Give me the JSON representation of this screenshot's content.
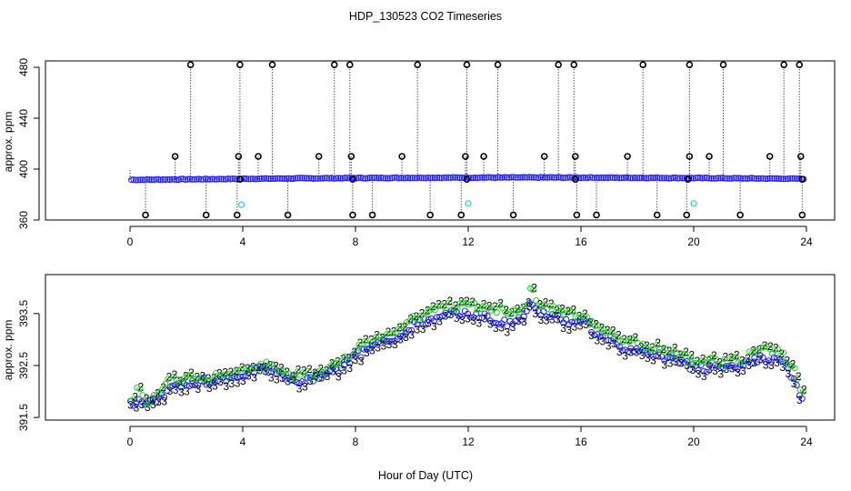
{
  "title": "HDP_130523  CO2 Timeseries",
  "xlabel": "Hour of Day (UTC)",
  "colors": {
    "axis": "#000000",
    "raw_points": "#000000",
    "raw_line": "#000000",
    "smoothed": "#1a1aff",
    "cal_points": "#33cccc",
    "series_2": "#22cc22",
    "series_3": "#1a1aff"
  },
  "chart_data": [
    {
      "type": "scatter",
      "name": "top-panel",
      "ylabel": "approx. ppm",
      "xlim": [
        -3,
        25
      ],
      "ylim": [
        360,
        485
      ],
      "xticks": [
        "0",
        "4",
        "8",
        "12",
        "16",
        "20",
        "24"
      ],
      "yticks": [
        "360",
        "400",
        "440",
        "480"
      ],
      "x_start": 0.05,
      "x_end": 23.9,
      "baseline": 392,
      "hi_spikes": [
        2.15,
        3.9,
        5.05,
        7.25,
        7.8,
        10.2,
        11.95,
        13.05,
        15.2,
        15.75,
        18.2,
        19.85,
        21.05,
        23.2,
        23.75
      ],
      "mid_spikes": [
        1.6,
        3.85,
        4.55,
        6.7,
        7.85,
        9.65,
        11.9,
        12.55,
        14.7,
        15.8,
        17.65,
        19.85,
        20.55,
        22.7,
        23.8
      ],
      "lo_spikes": [
        0.55,
        2.7,
        3.8,
        5.6,
        7.9,
        8.6,
        10.65,
        11.75,
        13.6,
        15.85,
        16.55,
        18.7,
        19.75,
        21.65,
        23.85
      ],
      "cal_points": [
        [
          3.95,
          372
        ],
        [
          12.0,
          373
        ],
        [
          20.0,
          373
        ]
      ],
      "hi_value": 482,
      "mid_value": 410,
      "lo_value": 364
    },
    {
      "type": "scatter",
      "name": "bottom-panel",
      "ylabel": "approx. ppm",
      "xlim": [
        -3,
        25
      ],
      "ylim": [
        391.45,
        394.25
      ],
      "xticks": [
        "0",
        "4",
        "8",
        "12",
        "16",
        "20",
        "24"
      ],
      "yticks": [
        "391.5",
        "392.5",
        "393.5"
      ],
      "series": [
        {
          "name": "2",
          "label": "2",
          "x": [
            0,
            0.3,
            0.6,
            0.9,
            1.2,
            1.5,
            2,
            2.5,
            3,
            3.5,
            4,
            4.5,
            5,
            5.5,
            6,
            6.5,
            7,
            7.5,
            8,
            8.5,
            9,
            9.5,
            10,
            10.5,
            11,
            11.5,
            12,
            12.5,
            13,
            13.5,
            14,
            14.2,
            14.5,
            15,
            15.5,
            16,
            16.5,
            17,
            17.5,
            18,
            18.5,
            19,
            19.5,
            20,
            20.5,
            21,
            21.5,
            22,
            22.5,
            23,
            23.3,
            23.6,
            23.85
          ],
          "values": [
            391.85,
            392.05,
            391.75,
            392.0,
            392.15,
            392.2,
            392.3,
            392.25,
            392.3,
            392.35,
            392.4,
            392.5,
            392.5,
            392.35,
            392.3,
            392.35,
            392.45,
            392.55,
            392.8,
            392.95,
            393.1,
            393.2,
            393.4,
            393.5,
            393.6,
            393.65,
            393.65,
            393.65,
            393.6,
            393.55,
            393.6,
            393.95,
            393.7,
            393.6,
            393.5,
            393.45,
            393.25,
            393.15,
            393.0,
            392.9,
            392.85,
            392.8,
            392.7,
            392.55,
            392.6,
            392.55,
            392.6,
            392.7,
            392.8,
            392.75,
            392.6,
            392.35,
            391.95
          ]
        },
        {
          "name": "3",
          "label": "3",
          "x": [
            0,
            0.3,
            0.6,
            0.9,
            1.2,
            1.5,
            2,
            2.5,
            3,
            3.5,
            4,
            4.5,
            5,
            5.5,
            6,
            6.5,
            7,
            7.5,
            8,
            8.5,
            9,
            9.5,
            10,
            10.5,
            11,
            11.5,
            12,
            12.5,
            13,
            13.5,
            14,
            14.2,
            14.5,
            15,
            15.5,
            16,
            16.5,
            17,
            17.5,
            18,
            18.5,
            19,
            19.5,
            20,
            20.5,
            21,
            21.5,
            22,
            22.5,
            23,
            23.3,
            23.6,
            23.85
          ],
          "values": [
            391.75,
            391.8,
            391.8,
            391.85,
            391.95,
            392.05,
            392.15,
            392.2,
            392.2,
            392.25,
            392.35,
            392.45,
            392.4,
            392.3,
            392.2,
            392.25,
            392.35,
            392.45,
            392.7,
            392.8,
            392.95,
            393.05,
            393.25,
            393.35,
            393.4,
            393.5,
            393.5,
            393.45,
            393.35,
            393.3,
            393.4,
            393.7,
            393.5,
            393.45,
            393.35,
            393.35,
            393.15,
            393.05,
            392.85,
            392.75,
            392.7,
            392.65,
            392.6,
            392.45,
            392.45,
            392.45,
            392.5,
            392.55,
            392.65,
            392.6,
            392.45,
            392.2,
            391.85
          ]
        }
      ]
    }
  ]
}
